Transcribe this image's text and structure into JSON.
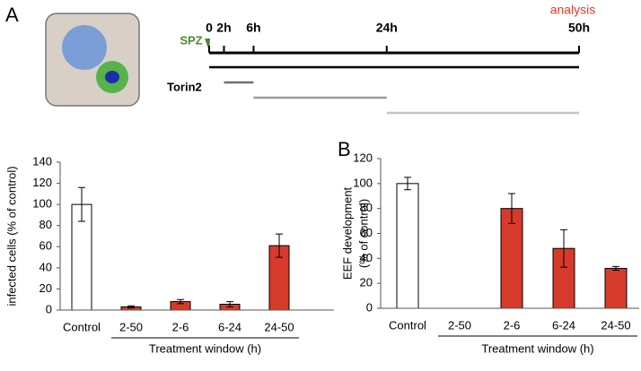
{
  "panels": {
    "a": "A",
    "b": "B"
  },
  "timeline": {
    "spz": "SPZ",
    "analysis": "analysis",
    "drug": "Torin2",
    "xlim": [
      0,
      50
    ],
    "xticks": [
      0,
      {
        "value": 2,
        "label": "2h"
      },
      {
        "value": 6,
        "label": "6h"
      },
      {
        "value": 24,
        "label": "24h"
      },
      {
        "value": 50,
        "label": "50h"
      }
    ],
    "treatments": [
      {
        "color": "#000000",
        "window": [
          0,
          50
        ]
      },
      {
        "color": "#707070",
        "window": [
          2,
          6
        ]
      },
      {
        "color": "#9a9a9a",
        "window": [
          6,
          24
        ]
      },
      {
        "color": "#c4c4c4",
        "window": [
          24,
          50
        ]
      }
    ]
  },
  "chart_data": [
    {
      "type": "bar",
      "y_label": [
        "infected cells (% of control)"
      ],
      "x_label": "Treatment window (h)",
      "categories": [
        "Control",
        "2-50",
        "2-6",
        "6-24",
        "24-50"
      ],
      "values": [
        100,
        3,
        8,
        5.5,
        61
      ],
      "errors": [
        16,
        1,
        2,
        2.5,
        11
      ],
      "colors": [
        "#ffffff",
        "#d63a2a",
        "#d63a2a",
        "#d63a2a",
        "#d63a2a"
      ],
      "ylim": [
        0,
        140
      ],
      "yticks": [
        0,
        20,
        40,
        60,
        80,
        100,
        120,
        140
      ]
    },
    {
      "type": "bar",
      "y_label": [
        "EEF development",
        "(% of control)"
      ],
      "x_label": "Treatment window (h)",
      "categories": [
        "Control",
        "2-50",
        "2-6",
        "6-24",
        "24-50"
      ],
      "values": [
        100,
        0,
        80,
        48,
        32
      ],
      "errors": [
        5,
        0,
        12,
        15,
        1.5
      ],
      "colors": [
        "#ffffff",
        "#d63a2a",
        "#d63a2a",
        "#d63a2a",
        "#d63a2a"
      ],
      "ylim": [
        0,
        120
      ],
      "yticks": [
        0,
        20,
        40,
        60,
        80,
        100,
        120
      ]
    }
  ]
}
